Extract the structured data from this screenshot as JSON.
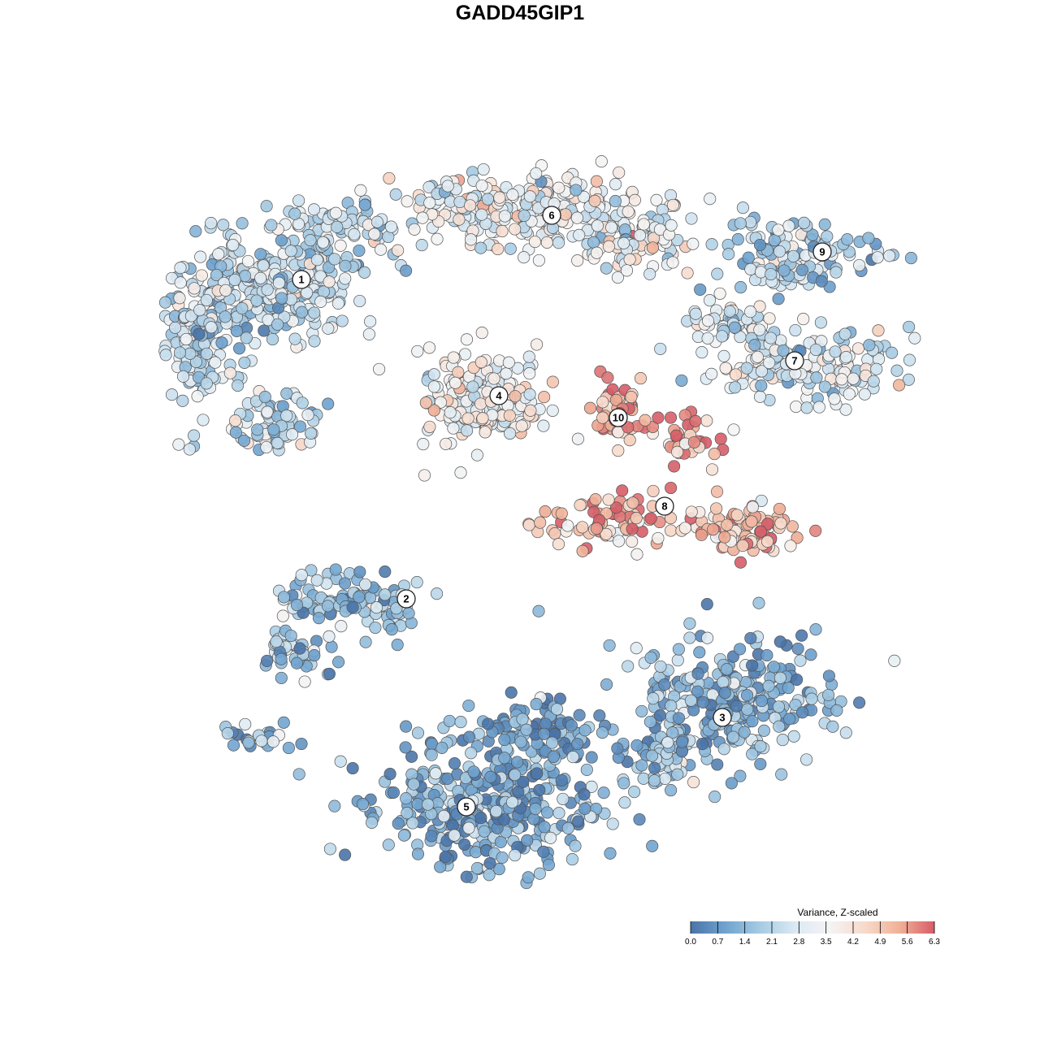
{
  "title": "GADD45GIP1",
  "chart_data": {
    "type": "scatter",
    "title": "GADD45GIP1",
    "xlabel": "",
    "ylabel": "",
    "grid": false,
    "legend": {
      "title": "Variance, Z-scaled",
      "placement": "bottom-right",
      "range": [
        0.0,
        6.3
      ],
      "ticks": [
        "0.0",
        "0.7",
        "1.4",
        "2.1",
        "2.8",
        "3.5",
        "4.2",
        "4.9",
        "5.6",
        "6.3"
      ],
      "colors": [
        "#4a74a8",
        "#6fa3cf",
        "#a6cbe3",
        "#dbe9f3",
        "#f4f4f4",
        "#f7dacb",
        "#f0b197",
        "#d65d68"
      ]
    },
    "clusters": [
      {
        "label": "1",
        "mean_value": 2.3
      },
      {
        "label": "2",
        "mean_value": 1.6
      },
      {
        "label": "3",
        "mean_value": 1.5
      },
      {
        "label": "4",
        "mean_value": 3.5
      },
      {
        "label": "5",
        "mean_value": 1.1
      },
      {
        "label": "6",
        "mean_value": 3.2
      },
      {
        "label": "7",
        "mean_value": 2.9
      },
      {
        "label": "8",
        "mean_value": 5.2
      },
      {
        "label": "9",
        "mean_value": 2.1
      },
      {
        "label": "10",
        "mean_value": 5.5
      }
    ]
  }
}
